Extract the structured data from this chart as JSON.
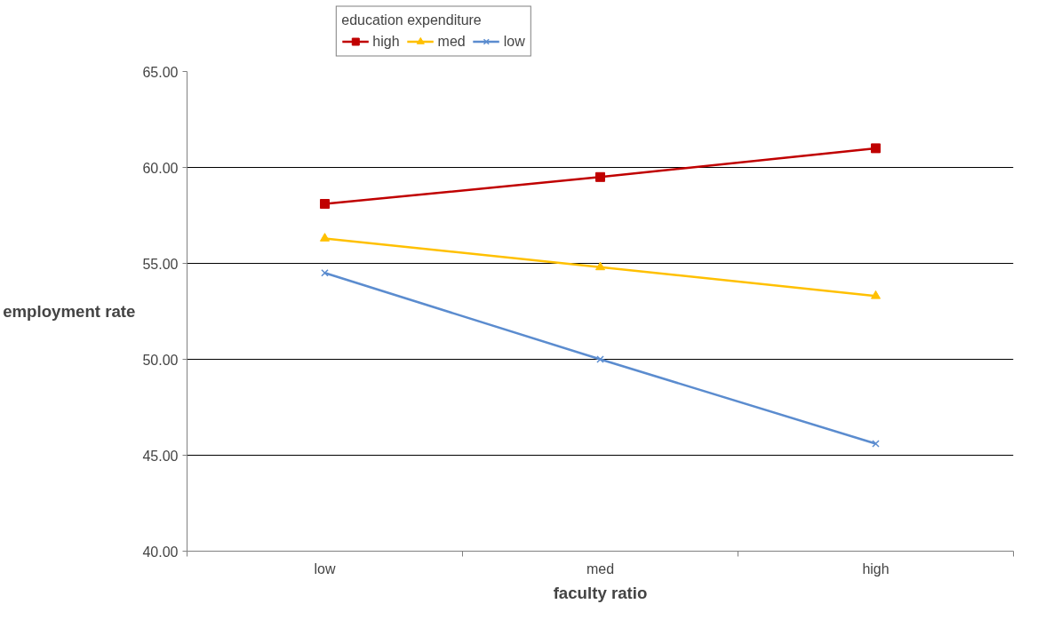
{
  "chart_data": {
    "type": "line",
    "xlabel": "faculty ratio",
    "ylabel": "employment rate",
    "legend_title": "education expenditure",
    "categories": [
      "low",
      "med",
      "high"
    ],
    "series": [
      {
        "name": "high",
        "color": "#c00000",
        "marker": "square",
        "values": [
          58.1,
          59.5,
          61.0
        ]
      },
      {
        "name": "med",
        "color": "#ffc000",
        "marker": "triangle",
        "values": [
          56.3,
          54.8,
          53.3
        ]
      },
      {
        "name": "low",
        "color": "#5b8ccf",
        "marker": "cross",
        "values": [
          54.5,
          50.0,
          45.6
        ]
      }
    ],
    "ylim": [
      40,
      65
    ],
    "yticks": [
      {
        "value": 40,
        "label": "40.00"
      },
      {
        "value": 45,
        "label": "45.00"
      },
      {
        "value": 50,
        "label": "50.00"
      },
      {
        "value": 55,
        "label": "55.00"
      },
      {
        "value": 60,
        "label": "60.00"
      },
      {
        "value": 65,
        "label": "65.00"
      }
    ],
    "grid": "y",
    "legend": "top",
    "line_style": "solid"
  }
}
